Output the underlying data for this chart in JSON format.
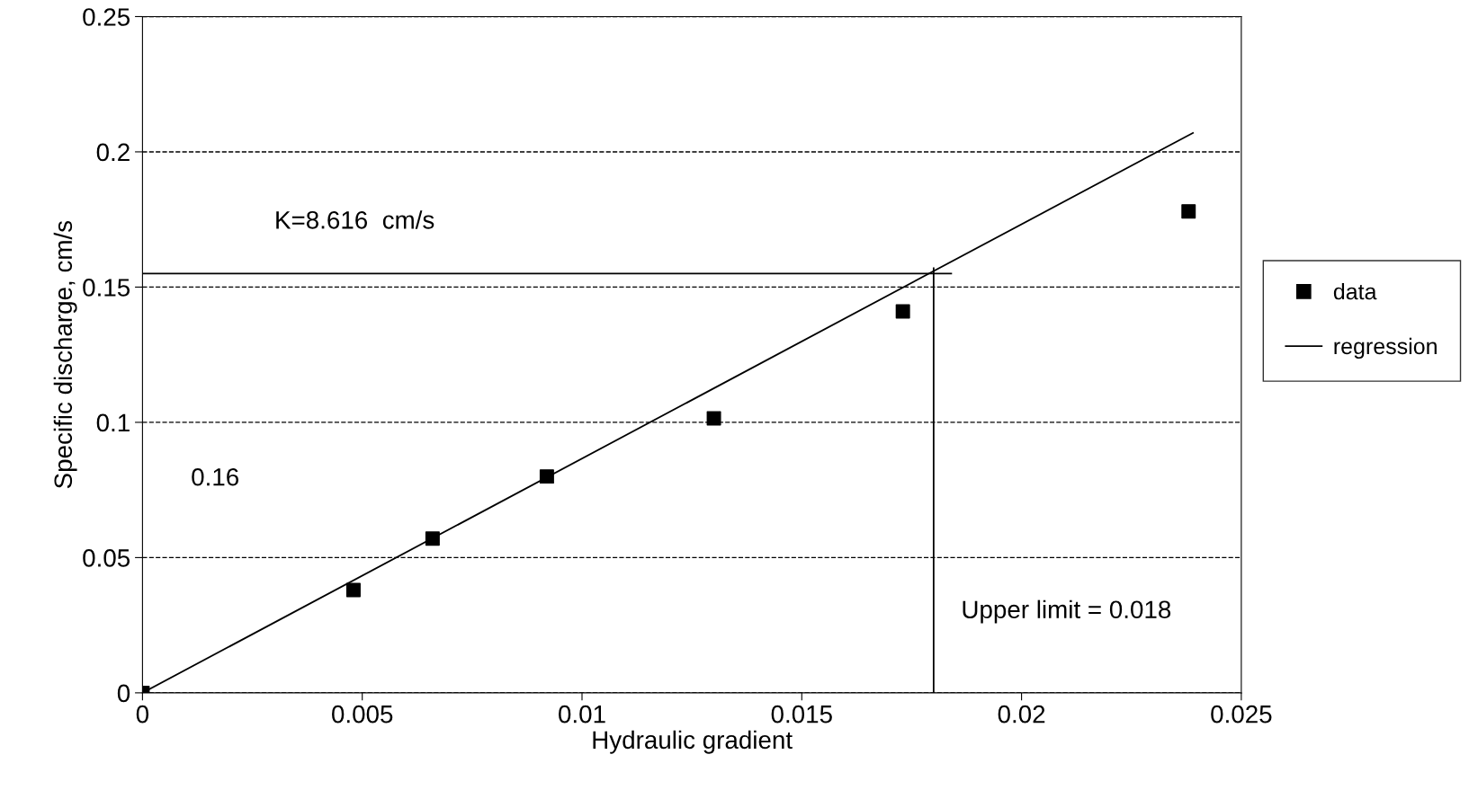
{
  "chart_data": {
    "type": "scatter",
    "xlabel": "Hydraulic gradient",
    "ylabel": "Specific discharge, cm/s",
    "series": [
      {
        "name": "data",
        "color": "#000000",
        "marker": "square",
        "x": [
          0,
          0.0048,
          0.0066,
          0.0092,
          0.013,
          0.0173,
          0.0238
        ],
        "values": [
          0,
          0.038,
          0.057,
          0.08,
          0.1015,
          0.141,
          0.178
        ]
      },
      {
        "name": "regression",
        "type": "line",
        "color": "#000000",
        "marker": "none",
        "x": [
          0,
          0.0239
        ],
        "values": [
          0,
          0.207
        ]
      },
      {
        "type": "line",
        "color": "#000000",
        "marker": "none",
        "x": [
          0,
          0.0184
        ],
        "values": [
          0.155,
          0.155
        ]
      },
      {
        "type": "line",
        "color": "#000000",
        "marker": "none",
        "x": [
          0.018,
          0.018
        ],
        "values": [
          0,
          0.157
        ]
      }
    ],
    "xlim": [
      0,
      0.025
    ],
    "xticks": [
      0,
      0.005,
      {
        "value": 0.01,
        "label": "0.01"
      },
      0.015,
      {
        "value": 0.02,
        "label": "0.02"
      },
      0.025
    ],
    "ylim": [
      0,
      0.25
    ],
    "yticks": [
      0,
      0.05,
      {
        "value": 0.1,
        "label": "0.1"
      },
      0.15,
      {
        "value": 0.2,
        "label": "0.2"
      },
      0.25
    ],
    "grid": "y",
    "legend": "right",
    "annotations": [
      "K=8.616  cm/s",
      "0.16",
      "Upper limit = 0.018"
    ]
  }
}
